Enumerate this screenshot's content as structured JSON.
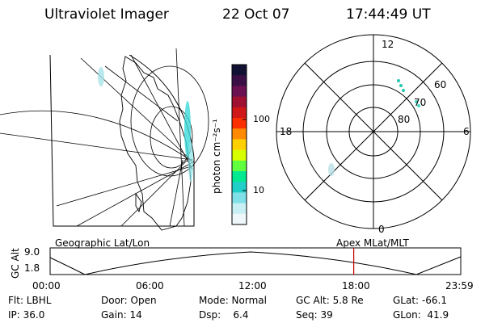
{
  "header": {
    "instrument": "Ultraviolet Imager",
    "date": "22 Oct 07",
    "time": "17:44:49 UT"
  },
  "colorbar": {
    "label": "photon cm⁻²s⁻¹",
    "ticks": [
      "100",
      "10"
    ],
    "colors": [
      "#111133",
      "#3a0f45",
      "#6b1050",
      "#a01030",
      "#d01818",
      "#ff3000",
      "#ff8a00",
      "#ffd000",
      "#d8ff00",
      "#60ff40",
      "#00e890",
      "#20d0c8",
      "#80e0e8",
      "#c8f0f4",
      "#eef8fa"
    ]
  },
  "polar_plot": {
    "mlt_labels": {
      "top": "12",
      "bottom": "0",
      "left": "18",
      "right": "6"
    },
    "lat_labels": [
      "60",
      "70",
      "80"
    ]
  },
  "timeline": {
    "left_title": "Geographic Lat/Lon",
    "right_title": "Apex MLat/MLT",
    "axis_label": "GC Alt",
    "y_labels": [
      "9.0",
      "1.8"
    ],
    "x_labels": [
      "00:00",
      "06:00",
      "12:00",
      "18:00",
      "23:59"
    ],
    "current_time_fraction": 0.7394,
    "marker_color": "#cc0000"
  },
  "footer": {
    "row1": {
      "flt": "Flt: LBHL",
      "door": "Door: Open",
      "mode": "Mode: Normal",
      "gc_alt": "GC Alt: 5.8 Re",
      "glat": "GLat: -66.1"
    },
    "row2": {
      "ip": "IP: 36.0",
      "gain": "Gain: 14",
      "dsp": "Dsp:    6.4",
      "seq": "Seq: 39",
      "glon": "GLon:  41.9"
    }
  }
}
